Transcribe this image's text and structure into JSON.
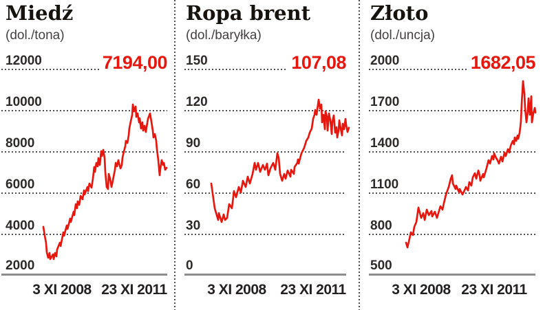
{
  "accent_red": "#e6170f",
  "chart_data": [
    {
      "type": "line",
      "title": "Miedź",
      "unit": "(dol./tona)",
      "value_label": "7194,00",
      "last_value": 7194.0,
      "y_ticks": [
        "12000",
        "10000",
        "8000",
        "6000",
        "4000",
        "2000"
      ],
      "x_ticks": [
        "3 XI 2008",
        "23 XI 2011"
      ],
      "ylim": [
        2000,
        12000
      ],
      "grid": "dotted-horizontal",
      "series": {
        "name": "Miedź (dol./tona)",
        "points": [
          [
            0.0,
            4333
          ],
          [
            0.011,
            3900
          ],
          [
            0.022,
            3566
          ],
          [
            0.028,
            3100
          ],
          [
            0.039,
            2833
          ],
          [
            0.05,
            3066
          ],
          [
            0.056,
            2766
          ],
          [
            0.078,
            3000
          ],
          [
            0.084,
            2766
          ],
          [
            0.095,
            3066
          ],
          [
            0.106,
            2900
          ],
          [
            0.112,
            3233
          ],
          [
            0.134,
            3566
          ],
          [
            0.14,
            3400
          ],
          [
            0.162,
            4066
          ],
          [
            0.168,
            3900
          ],
          [
            0.19,
            4400
          ],
          [
            0.196,
            4233
          ],
          [
            0.218,
            4733
          ],
          [
            0.223,
            4566
          ],
          [
            0.246,
            5066
          ],
          [
            0.251,
            4900
          ],
          [
            0.263,
            5433
          ],
          [
            0.274,
            5233
          ],
          [
            0.279,
            5566
          ],
          [
            0.291,
            5400
          ],
          [
            0.302,
            5833
          ],
          [
            0.318,
            5666
          ],
          [
            0.33,
            6100
          ],
          [
            0.335,
            5900
          ],
          [
            0.358,
            6266
          ],
          [
            0.363,
            6066
          ],
          [
            0.374,
            6433
          ],
          [
            0.391,
            6233
          ],
          [
            0.402,
            6666
          ],
          [
            0.413,
            7233
          ],
          [
            0.419,
            7000
          ],
          [
            0.43,
            7433
          ],
          [
            0.441,
            7266
          ],
          [
            0.447,
            7666
          ],
          [
            0.458,
            7333
          ],
          [
            0.469,
            8000
          ],
          [
            0.475,
            7766
          ],
          [
            0.486,
            8066
          ],
          [
            0.497,
            7666
          ],
          [
            0.503,
            7000
          ],
          [
            0.514,
            6266
          ],
          [
            0.525,
            6166
          ],
          [
            0.531,
            6900
          ],
          [
            0.542,
            6666
          ],
          [
            0.553,
            6266
          ],
          [
            0.559,
            6433
          ],
          [
            0.581,
            7100
          ],
          [
            0.587,
            7433
          ],
          [
            0.598,
            7266
          ],
          [
            0.609,
            7566
          ],
          [
            0.615,
            7400
          ],
          [
            0.626,
            7166
          ],
          [
            0.637,
            7333
          ],
          [
            0.642,
            7666
          ],
          [
            0.654,
            8000
          ],
          [
            0.665,
            8233
          ],
          [
            0.67,
            8500
          ],
          [
            0.682,
            8400
          ],
          [
            0.693,
            8766
          ],
          [
            0.698,
            9100
          ],
          [
            0.709,
            9433
          ],
          [
            0.721,
            9766
          ],
          [
            0.726,
            10266
          ],
          [
            0.737,
            9933
          ],
          [
            0.749,
            10166
          ],
          [
            0.754,
            9666
          ],
          [
            0.765,
            9833
          ],
          [
            0.777,
            9400
          ],
          [
            0.782,
            9600
          ],
          [
            0.793,
            9100
          ],
          [
            0.804,
            9400
          ],
          [
            0.81,
            9000
          ],
          [
            0.821,
            9233
          ],
          [
            0.832,
            8933
          ],
          [
            0.838,
            9166
          ],
          [
            0.849,
            9566
          ],
          [
            0.86,
            9733
          ],
          [
            0.866,
            9833
          ],
          [
            0.877,
            9433
          ],
          [
            0.888,
            9000
          ],
          [
            0.894,
            8666
          ],
          [
            0.905,
            8833
          ],
          [
            0.916,
            8500
          ],
          [
            0.922,
            8100
          ],
          [
            0.933,
            7566
          ],
          [
            0.944,
            6833
          ],
          [
            0.95,
            7166
          ],
          [
            0.961,
            7566
          ],
          [
            0.972,
            7333
          ],
          [
            0.978,
            7433
          ],
          [
            0.989,
            7100
          ],
          [
            1.0,
            7194
          ]
        ]
      }
    },
    {
      "type": "line",
      "title": "Ropa brent",
      "unit": "(dol./baryłka)",
      "value_label": "107,08",
      "last_value": 107.08,
      "y_ticks": [
        "150",
        "120",
        "90",
        "60",
        "30",
        "0"
      ],
      "x_ticks": [
        "3 XI 2008",
        "23 XI 2011"
      ],
      "ylim": [
        0,
        150
      ],
      "grid": "dotted-horizontal",
      "series": {
        "name": "Ropa brent (dol./baryłka)",
        "points": [
          [
            0.0,
            66.5
          ],
          [
            0.025,
            48.5
          ],
          [
            0.05,
            40
          ],
          [
            0.055,
            45
          ],
          [
            0.075,
            38.5
          ],
          [
            0.09,
            44
          ],
          [
            0.1,
            40
          ],
          [
            0.115,
            41.5
          ],
          [
            0.13,
            51.5
          ],
          [
            0.15,
            48.5
          ],
          [
            0.165,
            61
          ],
          [
            0.18,
            56.5
          ],
          [
            0.2,
            64
          ],
          [
            0.215,
            60
          ],
          [
            0.23,
            68.5
          ],
          [
            0.25,
            64
          ],
          [
            0.265,
            71.5
          ],
          [
            0.28,
            66.5
          ],
          [
            0.3,
            73.5
          ],
          [
            0.315,
            81.5
          ],
          [
            0.325,
            76.5
          ],
          [
            0.34,
            81.5
          ],
          [
            0.355,
            75
          ],
          [
            0.375,
            80
          ],
          [
            0.39,
            76.5
          ],
          [
            0.405,
            81
          ],
          [
            0.415,
            72.5
          ],
          [
            0.43,
            77.5
          ],
          [
            0.45,
            81.5
          ],
          [
            0.465,
            76.5
          ],
          [
            0.48,
            88.5
          ],
          [
            0.49,
            85
          ],
          [
            0.5,
            73.5
          ],
          [
            0.515,
            68.5
          ],
          [
            0.53,
            73.5
          ],
          [
            0.54,
            70
          ],
          [
            0.555,
            76
          ],
          [
            0.575,
            71.5
          ],
          [
            0.58,
            76.5
          ],
          [
            0.6,
            73.5
          ],
          [
            0.605,
            78.5
          ],
          [
            0.625,
            81.5
          ],
          [
            0.63,
            84
          ],
          [
            0.635,
            81
          ],
          [
            0.655,
            88.5
          ],
          [
            0.675,
            92.5
          ],
          [
            0.69,
            97.5
          ],
          [
            0.705,
            100
          ],
          [
            0.715,
            103.5
          ],
          [
            0.73,
            106.5
          ],
          [
            0.74,
            113.5
          ],
          [
            0.75,
            116.5
          ],
          [
            0.755,
            120
          ],
          [
            0.765,
            116.5
          ],
          [
            0.78,
            127.5
          ],
          [
            0.79,
            121
          ],
          [
            0.8,
            124
          ],
          [
            0.805,
            111
          ],
          [
            0.815,
            116.5
          ],
          [
            0.825,
            106
          ],
          [
            0.83,
            119
          ],
          [
            0.84,
            115
          ],
          [
            0.845,
            105
          ],
          [
            0.855,
            117.5
          ],
          [
            0.865,
            112.5
          ],
          [
            0.875,
            102.5
          ],
          [
            0.88,
            111.5
          ],
          [
            0.89,
            116
          ],
          [
            0.9,
            103.5
          ],
          [
            0.91,
            107.5
          ],
          [
            0.915,
            100
          ],
          [
            0.925,
            105
          ],
          [
            0.93,
            112.5
          ],
          [
            0.94,
            106.5
          ],
          [
            0.95,
            101.5
          ],
          [
            0.955,
            110
          ],
          [
            0.965,
            106
          ],
          [
            0.975,
            113.5
          ],
          [
            0.98,
            109
          ],
          [
            0.99,
            104
          ],
          [
            1.0,
            107.08
          ]
        ]
      }
    },
    {
      "type": "line",
      "title": "Złoto",
      "unit": "(dol./uncja)",
      "value_label": "1682,05",
      "last_value": 1682.05,
      "y_ticks": [
        "2000",
        "1700",
        "1400",
        "1100",
        "800",
        "500"
      ],
      "x_ticks": [
        "3 XI 2008",
        "23 XI 2011"
      ],
      "ylim": [
        500,
        2000
      ],
      "grid": "dotted-horizontal",
      "series": {
        "name": "Złoto (dol./uncja)",
        "points": [
          [
            0.0,
            735
          ],
          [
            0.011,
            700
          ],
          [
            0.027,
            765
          ],
          [
            0.037,
            810
          ],
          [
            0.053,
            790
          ],
          [
            0.064,
            850
          ],
          [
            0.08,
            885
          ],
          [
            0.096,
            990
          ],
          [
            0.117,
            915
          ],
          [
            0.133,
            950
          ],
          [
            0.144,
            900
          ],
          [
            0.16,
            975
          ],
          [
            0.176,
            935
          ],
          [
            0.197,
            965
          ],
          [
            0.202,
            925
          ],
          [
            0.223,
            960
          ],
          [
            0.239,
            915
          ],
          [
            0.25,
            950
          ],
          [
            0.266,
            1000
          ],
          [
            0.282,
            975
          ],
          [
            0.293,
            1025
          ],
          [
            0.309,
            1085
          ],
          [
            0.33,
            1140
          ],
          [
            0.346,
            1200
          ],
          [
            0.356,
            1225
          ],
          [
            0.362,
            1165
          ],
          [
            0.383,
            1125
          ],
          [
            0.388,
            1150
          ],
          [
            0.41,
            1100
          ],
          [
            0.415,
            1125
          ],
          [
            0.436,
            1085
          ],
          [
            0.452,
            1115
          ],
          [
            0.463,
            1140
          ],
          [
            0.479,
            1115
          ],
          [
            0.489,
            1175
          ],
          [
            0.505,
            1150
          ],
          [
            0.516,
            1210
          ],
          [
            0.532,
            1240
          ],
          [
            0.543,
            1200
          ],
          [
            0.559,
            1260
          ],
          [
            0.569,
            1225
          ],
          [
            0.574,
            1185
          ],
          [
            0.596,
            1235
          ],
          [
            0.601,
            1210
          ],
          [
            0.622,
            1275
          ],
          [
            0.638,
            1335
          ],
          [
            0.649,
            1310
          ],
          [
            0.665,
            1365
          ],
          [
            0.676,
            1340
          ],
          [
            0.681,
            1385
          ],
          [
            0.691,
            1360
          ],
          [
            0.707,
            1335
          ],
          [
            0.718,
            1310
          ],
          [
            0.734,
            1360
          ],
          [
            0.745,
            1325
          ],
          [
            0.761,
            1390
          ],
          [
            0.771,
            1365
          ],
          [
            0.787,
            1415
          ],
          [
            0.798,
            1390
          ],
          [
            0.809,
            1440
          ],
          [
            0.825,
            1475
          ],
          [
            0.835,
            1450
          ],
          [
            0.84,
            1500
          ],
          [
            0.851,
            1475
          ],
          [
            0.862,
            1515
          ],
          [
            0.867,
            1490
          ],
          [
            0.878,
            1535
          ],
          [
            0.888,
            1615
          ],
          [
            0.894,
            1750
          ],
          [
            0.904,
            1910
          ],
          [
            0.915,
            1815
          ],
          [
            0.92,
            1715
          ],
          [
            0.931,
            1610
          ],
          [
            0.941,
            1690
          ],
          [
            0.947,
            1785
          ],
          [
            0.957,
            1665
          ],
          [
            0.968,
            1800
          ],
          [
            0.973,
            1610
          ],
          [
            0.984,
            1675
          ],
          [
            0.995,
            1715
          ],
          [
            1.0,
            1682.05
          ]
        ]
      }
    }
  ]
}
